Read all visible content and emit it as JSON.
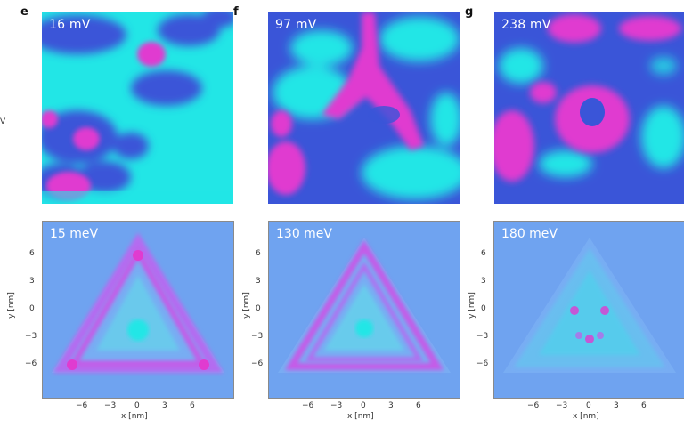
{
  "cut_label": "V",
  "panels_top": [
    {
      "letter": "e",
      "label": "16 mV"
    },
    {
      "letter": "f",
      "label": "97 mV"
    },
    {
      "letter": "g",
      "label": "238 mV"
    }
  ],
  "panels_bottom": [
    {
      "label": "15 meV"
    },
    {
      "label": "130 meV"
    },
    {
      "label": "180 meV"
    }
  ],
  "axes": {
    "x_title": "x [nm]",
    "y_title": "y [nm]",
    "x_ticks": [
      "−6",
      "−3",
      "0",
      "3",
      "6"
    ],
    "y_ticks": [
      "6",
      "3",
      "0",
      "−3",
      "−6"
    ]
  },
  "colors": {
    "cyan": "#22e6e6",
    "blue": "#3a55d8",
    "magenta": "#e03bd0",
    "sim_bg": "#6fa3f0"
  }
}
